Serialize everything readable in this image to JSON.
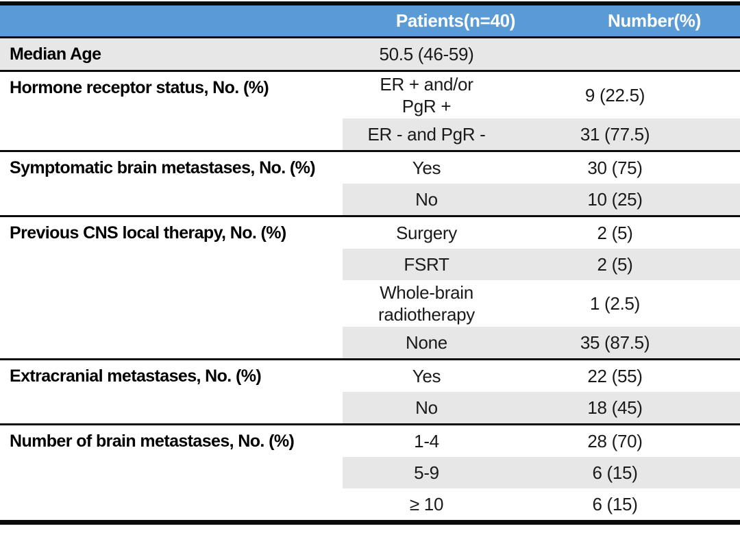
{
  "colors": {
    "header_bg": "#5b9bd5",
    "row_shade": "#e8e7e7",
    "border": "#0b0b0b",
    "header_text": "#ffffff"
  },
  "header": {
    "patients_label": "Patients(n=40)",
    "number_label": "Number(%)"
  },
  "sections": [
    {
      "label": "Median Age",
      "rows": [
        {
          "value": "50.5 (46-59)",
          "number": "",
          "shaded": "full"
        }
      ]
    },
    {
      "label": "Hormone receptor status, No. (%)",
      "rows": [
        {
          "value": "ER + and/or\nPgR +",
          "number": "9 (22.5)",
          "shaded": false
        },
        {
          "value": "ER - and PgR -",
          "number": "31 (77.5)",
          "shaded": true
        }
      ]
    },
    {
      "label": "Symptomatic brain metastases, No. (%)",
      "rows": [
        {
          "value": "Yes",
          "number": "30 (75)",
          "shaded": false
        },
        {
          "value": "No",
          "number": "10 (25)",
          "shaded": true
        }
      ]
    },
    {
      "label": "Previous CNS local therapy, No. (%)",
      "rows": [
        {
          "value": "Surgery",
          "number": "2 (5)",
          "shaded": false
        },
        {
          "value": "FSRT",
          "number": "2 (5)",
          "shaded": true
        },
        {
          "value": "Whole-brain\nradiotherapy",
          "number": "1 (2.5)",
          "shaded": false
        },
        {
          "value": "None",
          "number": "35 (87.5)",
          "shaded": true
        }
      ]
    },
    {
      "label": "Extracranial metastases, No. (%)",
      "rows": [
        {
          "value": "Yes",
          "number": "22 (55)",
          "shaded": false
        },
        {
          "value": "No",
          "number": "18 (45)",
          "shaded": true
        }
      ]
    },
    {
      "label": "Number of brain metastases, No. (%)",
      "rows": [
        {
          "value": "1-4",
          "number": "28 (70)",
          "shaded": false
        },
        {
          "value": "5-9",
          "number": "6 (15)",
          "shaded": true
        },
        {
          "value": "≥ 10",
          "number": "6 (15)",
          "shaded": false
        }
      ]
    }
  ]
}
